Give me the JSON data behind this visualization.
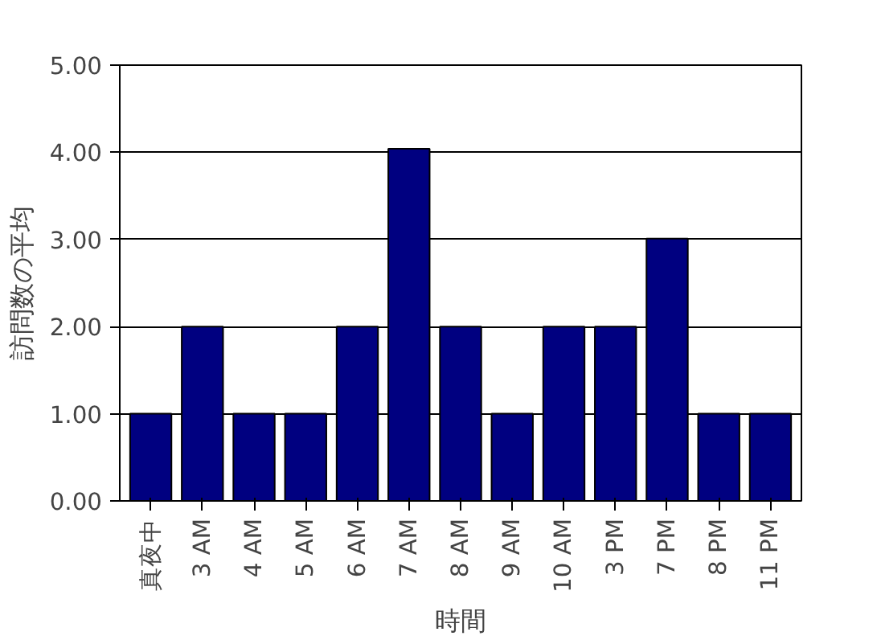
{
  "chart_data": {
    "type": "bar",
    "xlabel": "時間",
    "ylabel": "訪問数の平均",
    "categories": [
      "真夜中",
      "3 AM",
      "4 AM",
      "5 AM",
      "6 AM",
      "7 AM",
      "8 AM",
      "9 AM",
      "10 AM",
      "3 PM",
      "7 PM",
      "8 PM",
      "11 PM"
    ],
    "values": [
      1,
      2,
      1,
      1,
      2,
      4.04,
      2,
      1,
      2,
      2,
      3.01,
      1,
      1
    ],
    "color": "#000080",
    "ylim": [
      0,
      5
    ],
    "yticks": [
      {
        "value": 0,
        "label": "0.00"
      },
      {
        "value": 1,
        "label": "1.00"
      },
      {
        "value": 2,
        "label": "2.00"
      },
      {
        "value": 3,
        "label": "3.00"
      },
      {
        "value": 4,
        "label": "4.00"
      },
      {
        "value": 5,
        "label": "5.00"
      }
    ],
    "grid": "y"
  }
}
